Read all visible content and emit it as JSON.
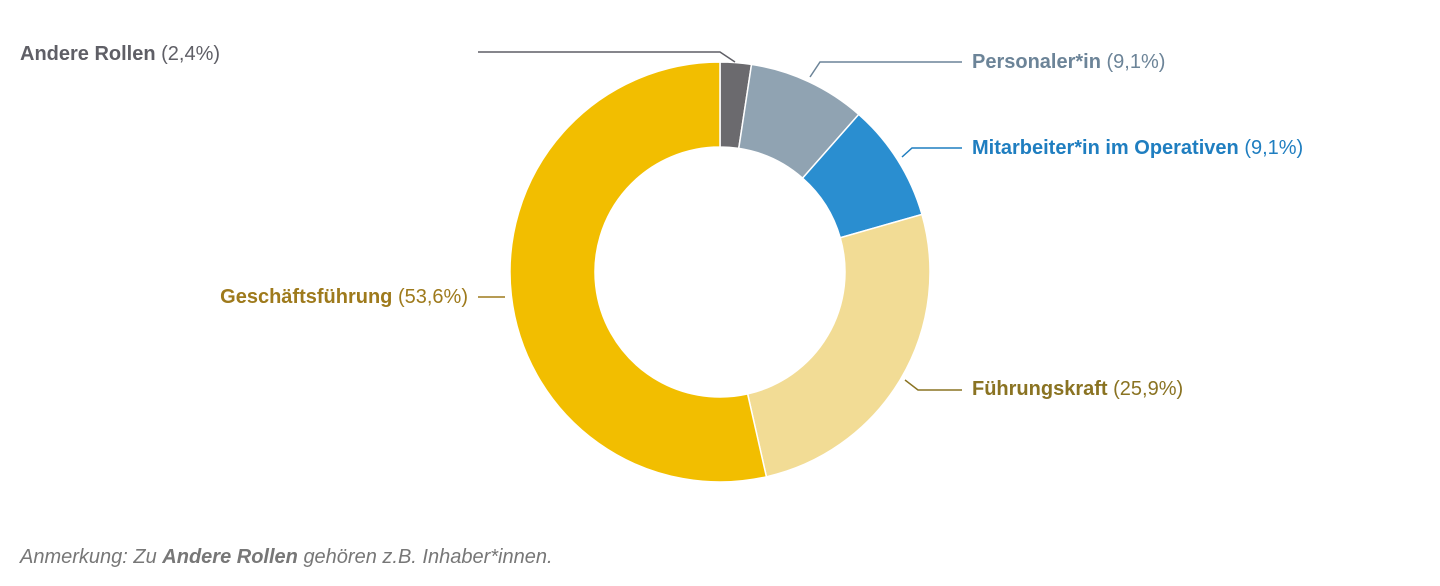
{
  "chart_data": {
    "type": "donut",
    "categories": [
      "Andere Rollen",
      "Personaler*in",
      "Mitarbeiter*in im Operativen",
      "Führungskraft",
      "Geschäftsführung"
    ],
    "values": [
      2.4,
      9.1,
      9.1,
      25.9,
      53.6
    ],
    "value_labels": [
      "(2,4%)",
      "(9,1%)",
      "(9,1%)",
      "(25,9%)",
      "(53,6%)"
    ],
    "colors": [
      "#6b6a6e",
      "#90a3b2",
      "#2a8ed0",
      "#f2dc95",
      "#f2be00"
    ],
    "label_colors": [
      "#5f5f66",
      "#6c8498",
      "#1f7ec0",
      "#8a7322",
      "#9e7a1c"
    ],
    "note": [
      "Anmerkung: Zu",
      "Andere Rollen",
      "gehören z.B. Inhaber*innen."
    ]
  }
}
